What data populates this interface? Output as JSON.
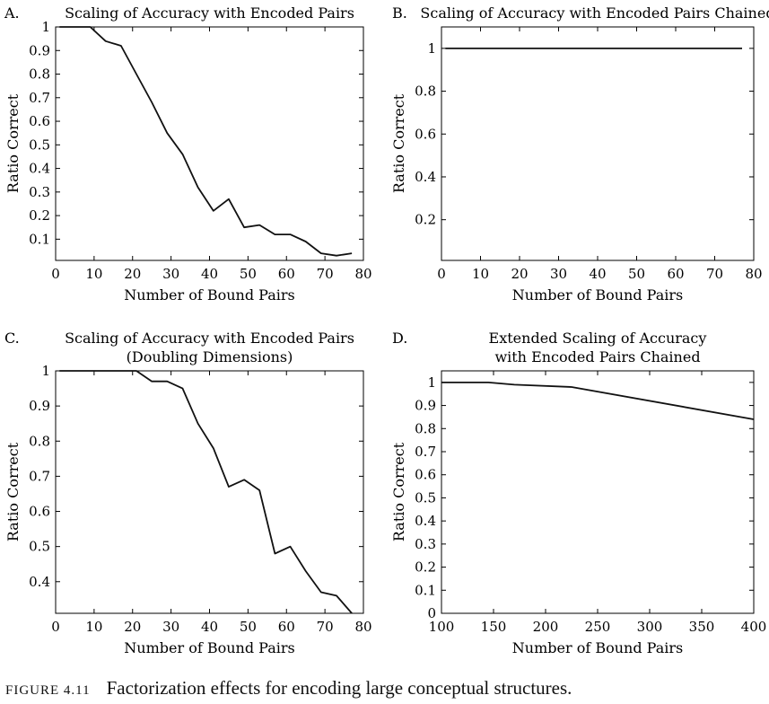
{
  "caption": {
    "label": "FIGURE 4.11",
    "text": "Factorization effects for encoding large conceptual structures."
  },
  "chart_data": [
    {
      "panel_label": "A.",
      "type": "line",
      "title": "Scaling of Accuracy with Encoded Pairs",
      "xlabel": "Number of Bound Pairs",
      "ylabel": "Ratio Correct",
      "xlim": [
        0,
        80
      ],
      "ylim": [
        0.01,
        1
      ],
      "xticks": [
        0,
        10,
        20,
        30,
        40,
        50,
        60,
        70,
        80
      ],
      "yticks": [
        0.1,
        0.2,
        0.3,
        0.4,
        0.5,
        0.6,
        0.7,
        0.8,
        0.9,
        1
      ],
      "grid": false,
      "series": [
        {
          "x": [
            1,
            5,
            9,
            13,
            17,
            21,
            25,
            29,
            33,
            37,
            41,
            45,
            49,
            53,
            57,
            61,
            65,
            69,
            73,
            77
          ],
          "values": [
            1,
            1,
            1,
            0.94,
            0.92,
            0.8,
            0.68,
            0.55,
            0.46,
            0.32,
            0.22,
            0.27,
            0.15,
            0.16,
            0.12,
            0.12,
            0.09,
            0.04,
            0.03,
            0.04
          ]
        }
      ]
    },
    {
      "panel_label": "B.",
      "type": "line",
      "title": "Scaling of Accuracy with Encoded Pairs Chained",
      "xlabel": "Number of Bound Pairs",
      "ylabel": "Ratio Correct",
      "xlim": [
        0,
        80
      ],
      "ylim": [
        0.01,
        1.1
      ],
      "xticks": [
        0,
        10,
        20,
        30,
        40,
        50,
        60,
        70,
        80
      ],
      "yticks": [
        0.2,
        0.4,
        0.6,
        0.8,
        1
      ],
      "grid": false,
      "series": [
        {
          "x": [
            1,
            77
          ],
          "values": [
            1,
            1
          ]
        }
      ]
    },
    {
      "panel_label": "C.",
      "type": "line",
      "title": "Scaling of Accuracy with Encoded Pairs\n(Doubling Dimensions)",
      "xlabel": "Number of Bound Pairs",
      "ylabel": "Ratio Correct",
      "xlim": [
        0,
        80
      ],
      "ylim": [
        0.31,
        1
      ],
      "xticks": [
        0,
        10,
        20,
        30,
        40,
        50,
        60,
        70,
        80
      ],
      "yticks": [
        0.4,
        0.5,
        0.6,
        0.7,
        0.8,
        0.9,
        1
      ],
      "grid": false,
      "series": [
        {
          "x": [
            1,
            5,
            9,
            13,
            17,
            21,
            25,
            29,
            33,
            37,
            41,
            45,
            49,
            53,
            57,
            61,
            65,
            69,
            73,
            77
          ],
          "values": [
            1,
            1,
            1,
            1,
            1,
            1,
            0.97,
            0.97,
            0.95,
            0.85,
            0.78,
            0.67,
            0.69,
            0.66,
            0.48,
            0.5,
            0.43,
            0.37,
            0.36,
            0.31
          ]
        }
      ]
    },
    {
      "panel_label": "D.",
      "type": "line",
      "title": "Extended Scaling of Accuracy\nwith Encoded Pairs Chained",
      "xlabel": "Number of Bound Pairs",
      "ylabel": "Ratio Correct",
      "xlim": [
        100,
        400
      ],
      "ylim": [
        0,
        1.05
      ],
      "xticks": [
        100,
        150,
        200,
        250,
        300,
        350,
        400
      ],
      "yticks": [
        0,
        0.1,
        0.2,
        0.3,
        0.4,
        0.5,
        0.6,
        0.7,
        0.8,
        0.9,
        1
      ],
      "grid": false,
      "series": [
        {
          "x": [
            100,
            145,
            170,
            225,
            400
          ],
          "values": [
            1,
            1,
            0.99,
            0.98,
            0.84
          ]
        }
      ]
    }
  ]
}
